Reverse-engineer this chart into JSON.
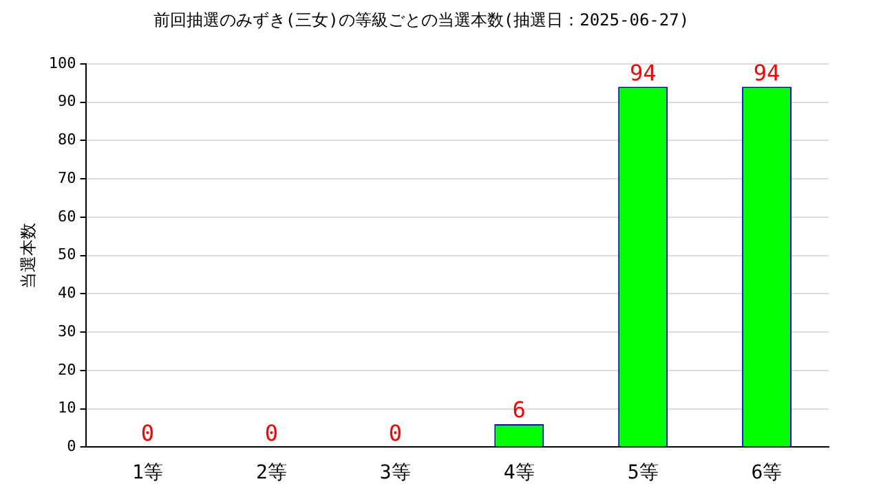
{
  "chart_data": {
    "type": "bar",
    "title": "前回抽選のみずき(三女)の等級ごとの当選本数(抽選日：2025-06-27)",
    "ylabel": "当選本数",
    "categories": [
      "1等",
      "2等",
      "3等",
      "4等",
      "5等",
      "6等"
    ],
    "values": [
      0,
      0,
      0,
      6,
      94,
      94
    ],
    "color": "#00ff00",
    "ylim": [
      0,
      100
    ],
    "yticks": [
      0,
      10,
      20,
      30,
      40,
      50,
      60,
      70,
      80,
      90,
      100
    ],
    "grid": "y",
    "data_labels": true,
    "legend": false
  }
}
